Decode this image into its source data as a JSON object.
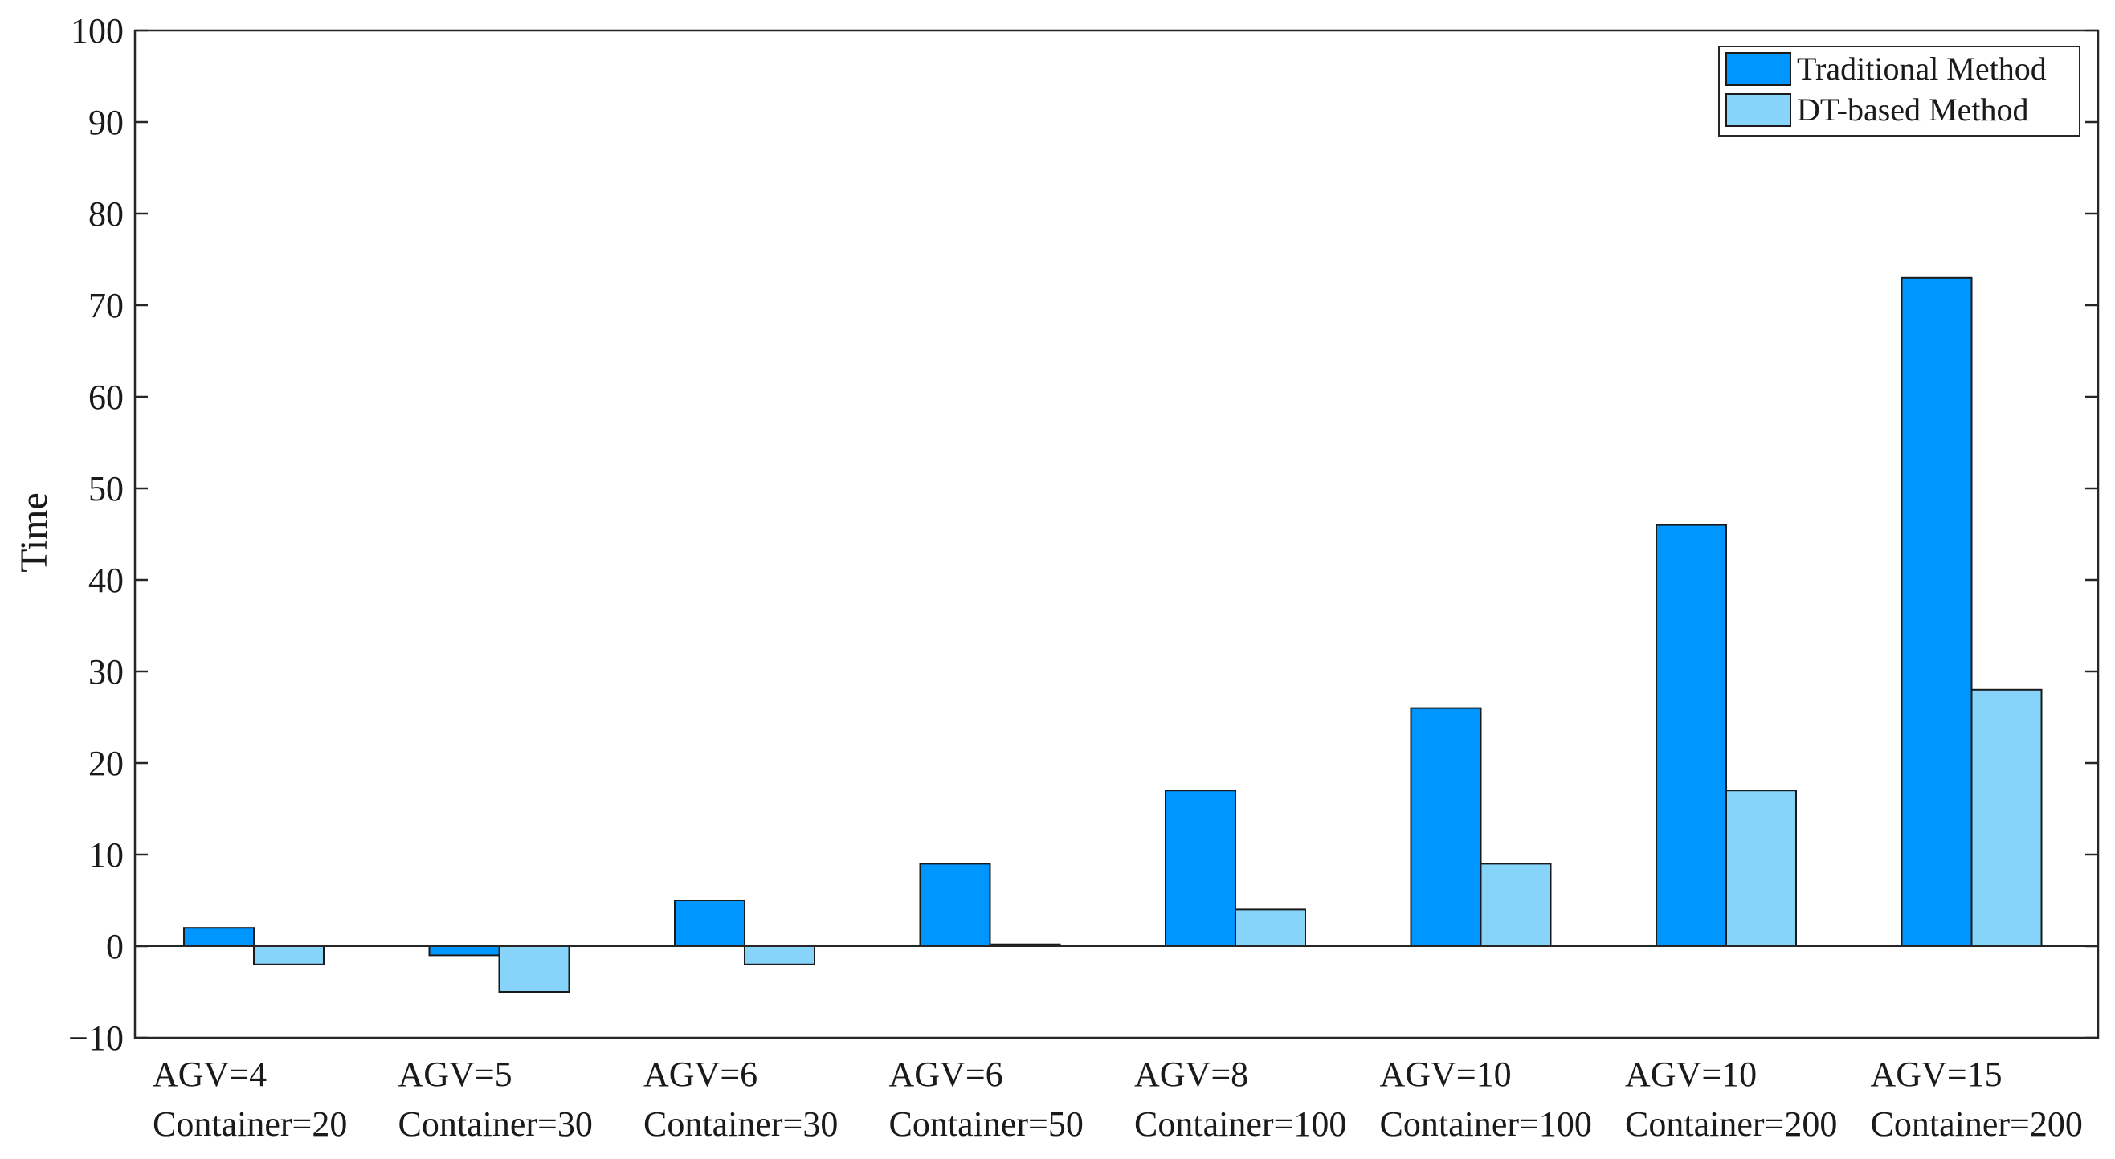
{
  "chart_data": {
    "type": "bar",
    "title": "",
    "xlabel": "",
    "ylabel": "Time",
    "ylim": [
      -10,
      100
    ],
    "yticks": [
      -10,
      0,
      10,
      20,
      30,
      40,
      50,
      60,
      70,
      80,
      90,
      100
    ],
    "grid": false,
    "legend_position": "top-right",
    "categories": [
      [
        "AGV=4",
        "Container=20"
      ],
      [
        "AGV=5",
        "Container=30"
      ],
      [
        "AGV=6",
        "Container=30"
      ],
      [
        "AGV=6",
        "Container=50"
      ],
      [
        "AGV=8",
        "Container=100"
      ],
      [
        "AGV=10",
        "Container=100"
      ],
      [
        "AGV=10",
        "Container=200"
      ],
      [
        "AGV=15",
        "Container=200"
      ]
    ],
    "series": [
      {
        "name": "Traditional Method",
        "color": "#0096ff",
        "values": [
          2,
          -1,
          5,
          9,
          17,
          26,
          46,
          73
        ]
      },
      {
        "name": "DT-based Method",
        "color": "#87d4fa",
        "values": [
          -2,
          -5,
          -2,
          0.2,
          4,
          9,
          17,
          28
        ]
      }
    ]
  }
}
